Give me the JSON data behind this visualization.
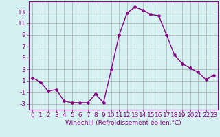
{
  "x": [
    0,
    1,
    2,
    3,
    4,
    5,
    6,
    7,
    8,
    9,
    10,
    11,
    12,
    13,
    14,
    15,
    16,
    17,
    18,
    19,
    20,
    21,
    22,
    23
  ],
  "y": [
    1.5,
    0.8,
    -0.8,
    -0.5,
    -2.5,
    -2.8,
    -2.8,
    -2.8,
    -1.3,
    -2.8,
    3.0,
    9.0,
    12.8,
    13.8,
    13.3,
    12.5,
    12.3,
    9.0,
    5.5,
    4.0,
    3.2,
    2.5,
    1.2,
    2.0
  ],
  "line_color": "#880088",
  "marker": "D",
  "markersize": 2.0,
  "linewidth": 1.0,
  "background_color": "#d4f0f0",
  "grid_color": "#aaaaaa",
  "xlabel": "Windchill (Refroidissement éolien,°C)",
  "xlabel_fontsize": 6.5,
  "xtick_labels": [
    "0",
    "1",
    "2",
    "3",
    "4",
    "5",
    "6",
    "7",
    "8",
    "9",
    "10",
    "11",
    "12",
    "13",
    "14",
    "15",
    "16",
    "17",
    "18",
    "19",
    "20",
    "21",
    "22",
    "23"
  ],
  "ytick_values": [
    -3,
    -1,
    1,
    3,
    5,
    7,
    9,
    11,
    13
  ],
  "xlim": [
    -0.5,
    23.5
  ],
  "ylim": [
    -4,
    14.8
  ],
  "tick_fontsize": 6.5
}
